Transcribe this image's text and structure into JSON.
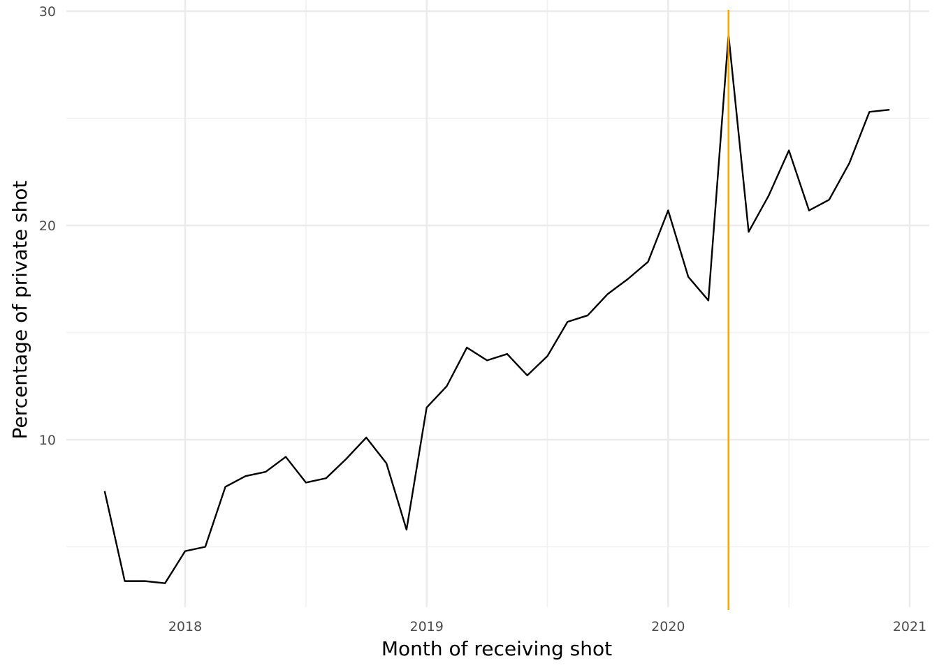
{
  "chart_data": {
    "type": "line",
    "title": "",
    "xlabel": "Month of receiving shot",
    "ylabel": "Percentage of private shot",
    "x_ticks": [
      "2018",
      "2019",
      "2020",
      "2021"
    ],
    "y_ticks": [
      "10",
      "20",
      "30"
    ],
    "ylim": [
      2.5,
      30
    ],
    "xlim": [
      "2017-07",
      "2021-01"
    ],
    "grid": true,
    "legend": "none",
    "series": [
      {
        "color": "#000000",
        "x": [
          "2017-09",
          "2017-10",
          "2017-11",
          "2017-12",
          "2018-01",
          "2018-02",
          "2018-03",
          "2018-04",
          "2018-05",
          "2018-06",
          "2018-07",
          "2018-08",
          "2018-09",
          "2018-10",
          "2018-11",
          "2018-12",
          "2019-01",
          "2019-02",
          "2019-03",
          "2019-04",
          "2019-05",
          "2019-06",
          "2019-07",
          "2019-08",
          "2019-09",
          "2019-10",
          "2019-11",
          "2019-12",
          "2020-01",
          "2020-02",
          "2020-03",
          "2020-04",
          "2020-05",
          "2020-06",
          "2020-07",
          "2020-08",
          "2020-09",
          "2020-10",
          "2020-11",
          "2020-12"
        ],
        "values": [
          7.6,
          3.4,
          3.4,
          3.3,
          4.8,
          5.0,
          7.8,
          8.3,
          8.5,
          9.2,
          8.0,
          8.2,
          9.1,
          10.1,
          8.9,
          5.8,
          11.5,
          12.5,
          14.3,
          13.7,
          14.0,
          13.0,
          13.9,
          15.5,
          15.8,
          16.8,
          17.5,
          18.3,
          20.7,
          17.6,
          16.5,
          28.9,
          19.7,
          21.4,
          23.5,
          20.7,
          21.2,
          22.9,
          25.3,
          25.4
        ]
      }
    ],
    "reference_line": {
      "x": "2020-04",
      "color": "#FFA500"
    }
  }
}
